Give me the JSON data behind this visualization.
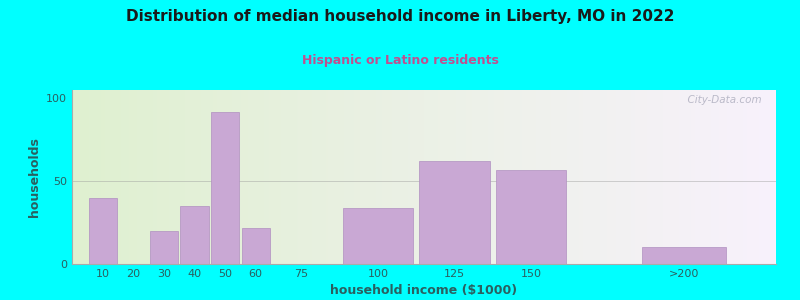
{
  "title": "Distribution of median household income in Liberty, MO in 2022",
  "subtitle": "Hispanic or Latino residents",
  "xlabel": "household income ($1000)",
  "ylabel": "households",
  "title_color": "#1a1a1a",
  "subtitle_color": "#c05090",
  "xlabel_color": "#2a6060",
  "ylabel_color": "#2a6060",
  "tick_color": "#2a6060",
  "bg_outer": "#00ffff",
  "bg_inner_left": "#dff0d0",
  "bg_inner_right": "#f4f0f8",
  "bar_color": "#c9a8d4",
  "bar_edge_color": "#b090c0",
  "categories": [
    "10",
    "20",
    "30",
    "40",
    "50",
    "60",
    "75",
    "100",
    "125",
    "150",
    ">200"
  ],
  "values": [
    40,
    0,
    20,
    35,
    92,
    22,
    0,
    34,
    62,
    57,
    10
  ],
  "ylim": [
    0,
    105
  ],
  "yticks": [
    0,
    50,
    100
  ],
  "watermark": "  City-Data.com",
  "bar_positions": [
    10,
    20,
    30,
    40,
    50,
    60,
    75,
    100,
    125,
    150,
    200
  ],
  "bar_widths": [
    10,
    10,
    10,
    10,
    10,
    10,
    15,
    25,
    25,
    25,
    30
  ],
  "xlim": [
    0,
    230
  ]
}
